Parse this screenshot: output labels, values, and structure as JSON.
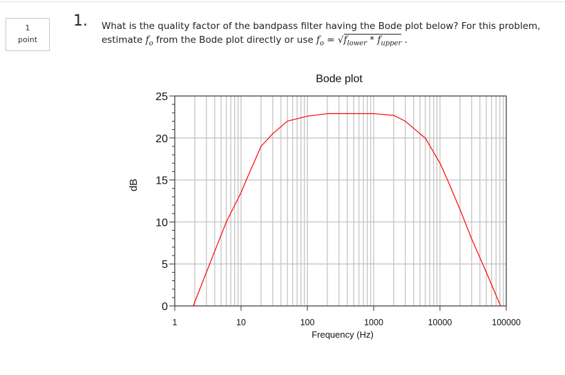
{
  "points": {
    "value": "1",
    "label": "point"
  },
  "question": {
    "number": "1.",
    "line1": "What is the quality factor of the bandpass filter having the Bode plot below? For this problem,",
    "line2_a": "estimate ",
    "f": "f",
    "o": "o",
    "line2_b": " from the Bode plot directly or use ",
    "eq": " = ",
    "lower": "lower",
    "times": " * ",
    "upper": "upper",
    "end": " ."
  },
  "chart_data": {
    "type": "line",
    "title": "Bode plot",
    "xlabel": "Frequency (Hz)",
    "ylabel": "dB",
    "xscale": "log",
    "xlim": [
      1,
      100000
    ],
    "ylim": [
      0,
      25
    ],
    "xticks": [
      "1",
      "10",
      "100",
      "1000",
      "10000",
      "100000"
    ],
    "yticks": [
      "0",
      "5",
      "10",
      "15",
      "20",
      "25"
    ],
    "grid": true,
    "series": [
      {
        "name": "magnitude",
        "color": "#ff0000",
        "x": [
          1.9,
          3,
          4,
          6,
          10,
          12,
          20,
          30,
          50,
          100,
          200,
          1000,
          2000,
          3000,
          5000,
          6000,
          10000,
          13000,
          20000,
          30000,
          50000,
          82000
        ],
        "y": [
          0,
          4,
          6.5,
          10,
          13.5,
          15,
          19,
          20.5,
          22,
          22.6,
          22.9,
          22.9,
          22.7,
          22,
          20.5,
          20,
          17,
          15,
          11.5,
          8,
          4,
          0
        ]
      }
    ]
  }
}
